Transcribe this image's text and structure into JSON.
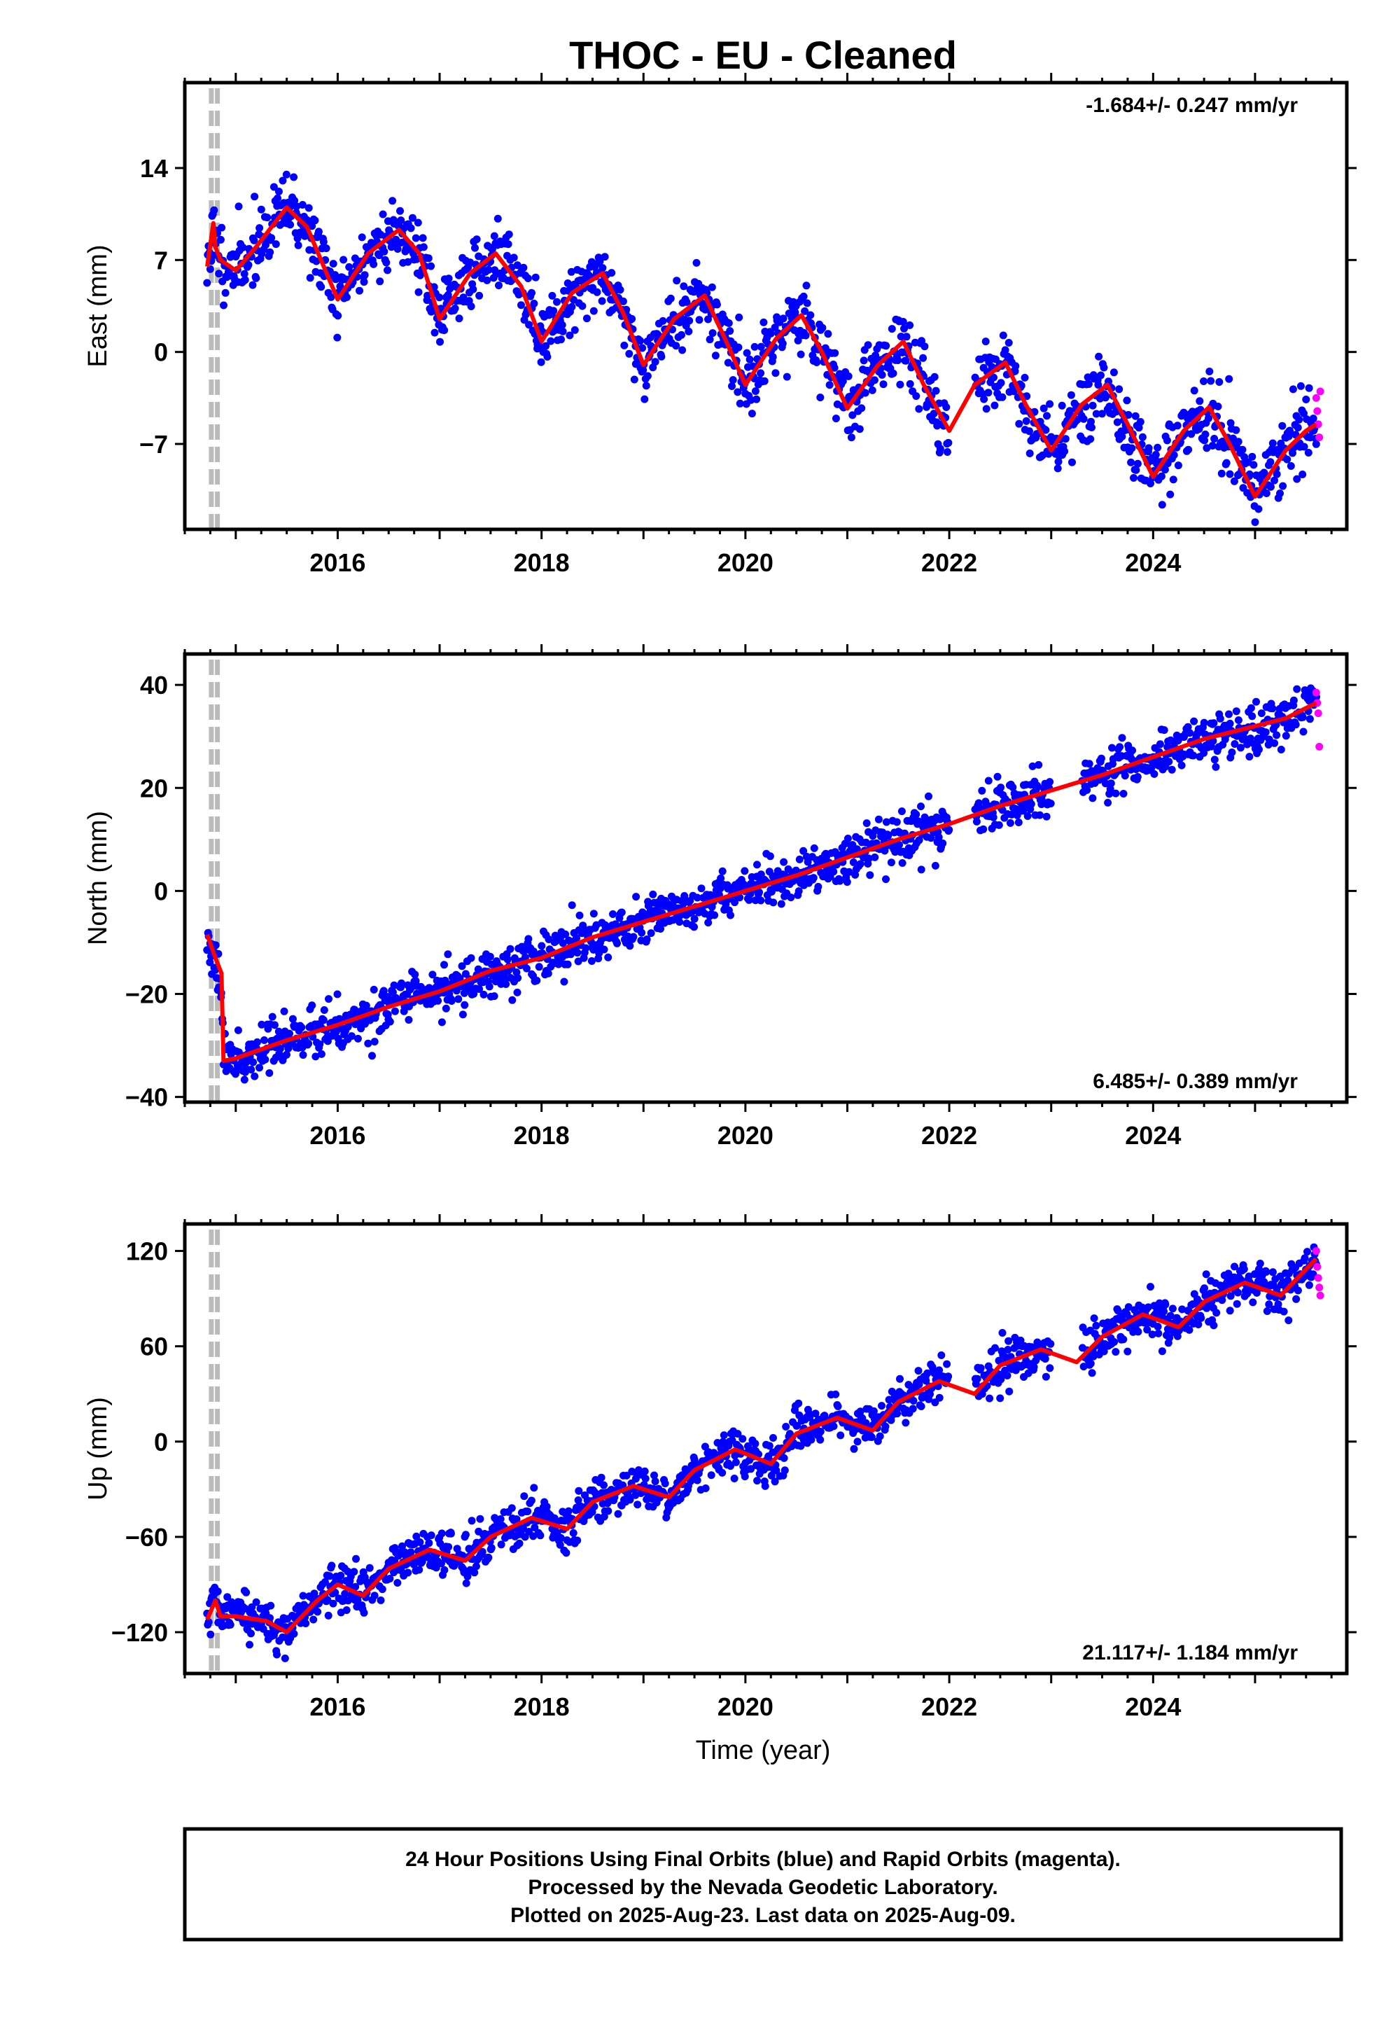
{
  "title": "THOC  - EU - Cleaned",
  "xlabel": "Time (year)",
  "footer": {
    "line1": "24 Hour Positions Using Final Orbits (blue) and Rapid Orbits (magenta).",
    "line2": "Processed by the Nevada Geodetic Laboratory.",
    "line3": "Plotted on 2025-Aug-23. Last data on 2025-Aug-09."
  },
  "colors": {
    "final_orbits": "#0000ff",
    "rapid_orbits": "#ff00ff",
    "model": "#ff0000",
    "equipment_change": "#bbbbbb"
  },
  "chart_data": [
    {
      "type": "scatter",
      "panel": "east",
      "ylabel": "East (mm)",
      "rate": "-1.684+/- 0.247 mm/yr",
      "rate_position": "top-right",
      "xlim": [
        2014.5,
        2025.9
      ],
      "ylim": [
        -13.5,
        20.5
      ],
      "x_ticks": [
        2016,
        2018,
        2020,
        2022,
        2024
      ],
      "y_ticks": [
        14,
        7,
        0,
        -7
      ],
      "y_tick_labels": [
        "14",
        "7",
        "0",
        "−7"
      ],
      "equipment_change_x": [
        2014.76,
        2014.82
      ],
      "data_start": 2014.72,
      "data_end": 2025.6,
      "model": {
        "x": [
          2014.72,
          2014.78,
          2014.8,
          2014.85,
          2015.0,
          2015.2,
          2015.5,
          2015.7,
          2016.0,
          2016.3,
          2016.6,
          2016.8,
          2017.0,
          2017.3,
          2017.55,
          2017.8,
          2018.0,
          2018.3,
          2018.6,
          2018.8,
          2019.0,
          2019.3,
          2019.6,
          2019.8,
          2020.0,
          2020.3,
          2020.55,
          2020.75,
          2021.0,
          2021.3,
          2021.55,
          2021.75,
          2022.0,
          2022.25,
          2022.55,
          2022.75,
          2023.0,
          2023.3,
          2023.55,
          2023.75,
          2024.0,
          2024.3,
          2024.55,
          2024.75,
          2025.0,
          2025.3,
          2025.5,
          2025.6
        ],
        "y": [
          6.5,
          9.8,
          8.0,
          7.0,
          6.2,
          8.0,
          11.0,
          9.5,
          4.0,
          7.5,
          9.3,
          7.5,
          2.5,
          6.0,
          7.5,
          5.0,
          0.8,
          4.5,
          6.0,
          3.0,
          -1.0,
          2.5,
          4.3,
          1.0,
          -2.5,
          1.0,
          2.8,
          0.0,
          -4.3,
          -1.0,
          0.8,
          -2.5,
          -6.0,
          -2.5,
          -0.8,
          -4.0,
          -7.5,
          -4.0,
          -2.5,
          -5.5,
          -9.5,
          -6.0,
          -4.2,
          -7.0,
          -11.0,
          -7.5,
          -6.0,
          -5.5
        ]
      },
      "scatter_seed": 11,
      "scatter_noise": 1.3,
      "rapid_values": [
        -3.5,
        -4.5,
        -5.5,
        -6.5,
        -3.0
      ]
    },
    {
      "type": "scatter",
      "panel": "north",
      "ylabel": "North (mm)",
      "rate": "6.485+/- 0.389 mm/yr",
      "rate_position": "bottom-right",
      "xlim": [
        2014.5,
        2025.9
      ],
      "ylim": [
        -41,
        46
      ],
      "x_ticks": [
        2016,
        2018,
        2020,
        2022,
        2024
      ],
      "y_ticks": [
        40,
        20,
        0,
        -20,
        -40
      ],
      "y_tick_labels": [
        "40",
        "20",
        "0",
        "−20",
        "−40"
      ],
      "equipment_change_x": [
        2014.76,
        2014.82
      ],
      "data_start": 2014.72,
      "data_end": 2025.6,
      "model": {
        "x": [
          2014.72,
          2014.8,
          2014.86,
          2014.88,
          2015.0,
          2015.5,
          2016.0,
          2016.5,
          2017.0,
          2017.5,
          2018.0,
          2018.5,
          2019.0,
          2019.5,
          2020.0,
          2020.5,
          2021.0,
          2021.5,
          2022.0,
          2022.5,
          2023.0,
          2023.5,
          2024.0,
          2024.5,
          2025.0,
          2025.3,
          2025.6
        ],
        "y": [
          -8.5,
          -13.0,
          -16.0,
          -33.0,
          -32.5,
          -29.0,
          -26.0,
          -22.5,
          -19.5,
          -15.5,
          -13.0,
          -9.0,
          -6.0,
          -3.0,
          0.0,
          3.0,
          6.5,
          10.0,
          13.0,
          16.5,
          19.5,
          22.5,
          26.0,
          29.5,
          32.0,
          33.5,
          36.5
        ]
      },
      "scatter_seed": 23,
      "scatter_noise": 2.3,
      "rapid_values": [
        38.5,
        36.5,
        34.5,
        28.0
      ]
    },
    {
      "type": "scatter",
      "panel": "up",
      "ylabel": "Up (mm)",
      "rate": "21.117+/- 1.184 mm/yr",
      "rate_position": "bottom-right",
      "xlim": [
        2014.5,
        2025.9
      ],
      "ylim": [
        -146,
        137
      ],
      "x_ticks": [
        2016,
        2018,
        2020,
        2022,
        2024
      ],
      "y_ticks": [
        120,
        60,
        0,
        -60,
        -120
      ],
      "y_tick_labels": [
        "120",
        "60",
        "0",
        "−60",
        "−120"
      ],
      "equipment_change_x": [
        2014.76,
        2014.82
      ],
      "data_start": 2014.72,
      "data_end": 2025.6,
      "model": {
        "x": [
          2014.72,
          2014.8,
          2014.85,
          2015.0,
          2015.3,
          2015.5,
          2015.8,
          2016.0,
          2016.25,
          2016.5,
          2016.9,
          2017.25,
          2017.5,
          2017.9,
          2018.25,
          2018.5,
          2018.9,
          2019.25,
          2019.5,
          2019.9,
          2020.25,
          2020.5,
          2020.9,
          2021.25,
          2021.5,
          2021.9,
          2022.25,
          2022.5,
          2022.9,
          2023.25,
          2023.5,
          2023.9,
          2024.25,
          2024.5,
          2024.9,
          2025.25,
          2025.6
        ],
        "y": [
          -112,
          -100,
          -110,
          -110,
          -113,
          -120,
          -100,
          -90,
          -97,
          -80,
          -68,
          -75,
          -60,
          -48,
          -55,
          -38,
          -28,
          -35,
          -18,
          -5,
          -14,
          5,
          15,
          7,
          25,
          38,
          30,
          48,
          58,
          50,
          66,
          80,
          72,
          88,
          100,
          92,
          115
        ]
      },
      "scatter_seed": 37,
      "scatter_noise": 7.0,
      "rapid_values": [
        120,
        110,
        103,
        97,
        92
      ]
    }
  ]
}
